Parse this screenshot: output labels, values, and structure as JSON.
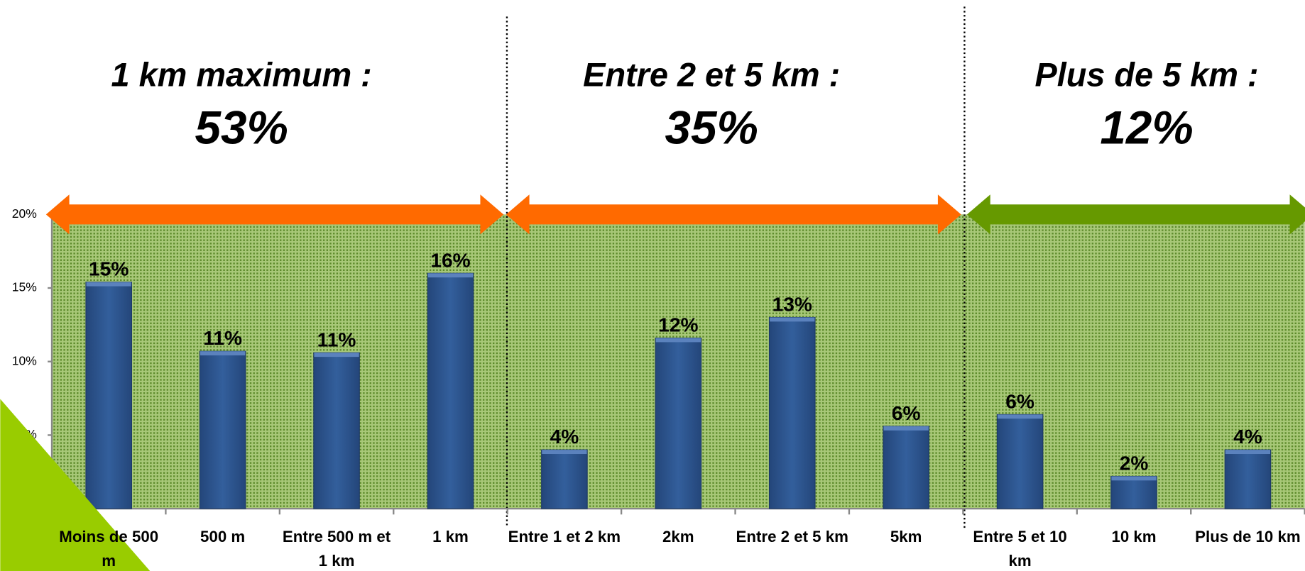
{
  "chart_data": {
    "type": "bar",
    "categories": [
      "Moins de 500 m",
      "500 m",
      "Entre 500 m et 1 km",
      "1 km",
      "Entre 1 et 2 km",
      "2km",
      "Entre 2 et 5 km",
      "5km",
      "Entre 5 et 10 km",
      "10 km",
      "Plus de 10 km"
    ],
    "values": [
      15.4,
      10.7,
      10.6,
      16,
      4,
      11.6,
      13,
      5.6,
      6.4,
      2.2,
      4
    ],
    "value_labels": [
      "15%",
      "11%",
      "11%",
      "16%",
      "4%",
      "12%",
      "13%",
      "6%",
      "6%",
      "2%",
      "4%"
    ],
    "color": "#2e5590",
    "ylim": [
      0,
      20
    ],
    "yticks": [
      {
        "value": 0,
        "label": "0%"
      },
      {
        "value": 5,
        "label": "5%"
      },
      {
        "value": 10,
        "label": "10%"
      },
      {
        "value": 15,
        "label": "15%"
      },
      {
        "value": 20,
        "label": "20%"
      }
    ],
    "groups": [
      {
        "title": "1 km maximum :",
        "share": "53%",
        "color": "#ff6a00"
      },
      {
        "title": "Entre 2 et 5 km :",
        "share": "35%",
        "color": "#ff6a00"
      },
      {
        "title": "Plus de 5 km :",
        "share": "12%",
        "color": "#669900"
      }
    ]
  }
}
